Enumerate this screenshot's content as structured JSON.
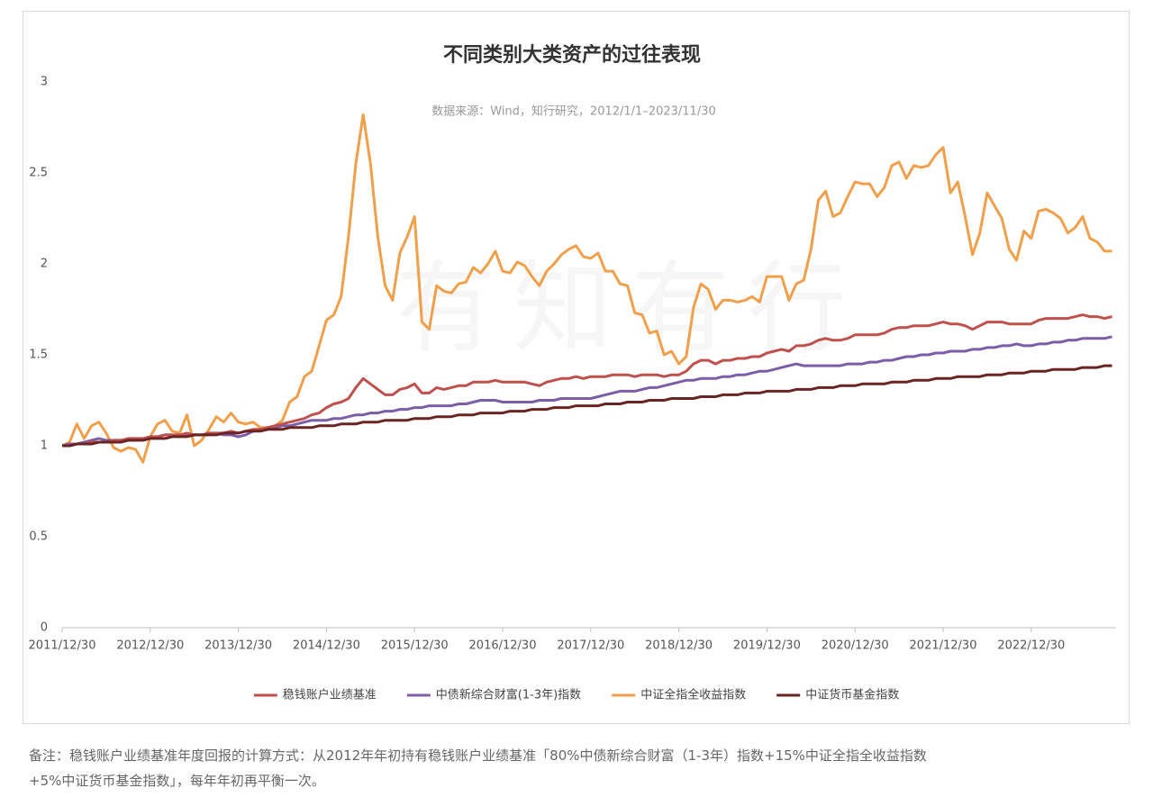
{
  "chart_data": {
    "type": "line",
    "title": "不同类别大类资产的过往表现",
    "subtitle": "数据来源：Wind，知行研究，2012/1/1–2023/11/30",
    "watermark": "有知有行",
    "categories": [
      "2011/12/30",
      null,
      null,
      null,
      null,
      null,
      null,
      null,
      null,
      null,
      null,
      null,
      "2012/12/30",
      null,
      null,
      null,
      null,
      null,
      null,
      null,
      null,
      null,
      null,
      null,
      "2013/12/30",
      null,
      null,
      null,
      null,
      null,
      null,
      null,
      null,
      null,
      null,
      null,
      "2014/12/30",
      null,
      null,
      null,
      null,
      null,
      null,
      null,
      null,
      null,
      null,
      null,
      "2015/12/30",
      null,
      null,
      null,
      null,
      null,
      null,
      null,
      null,
      null,
      null,
      null,
      "2016/12/30",
      null,
      null,
      null,
      null,
      null,
      null,
      null,
      null,
      null,
      null,
      null,
      "2017/12/30",
      null,
      null,
      null,
      null,
      null,
      null,
      null,
      null,
      null,
      null,
      null,
      "2018/12/30",
      null,
      null,
      null,
      null,
      null,
      null,
      null,
      null,
      null,
      null,
      null,
      "2019/12/30",
      null,
      null,
      null,
      null,
      null,
      null,
      null,
      null,
      null,
      null,
      null,
      "2020/12/30",
      null,
      null,
      null,
      null,
      null,
      null,
      null,
      null,
      null,
      null,
      null,
      "2021/12/30",
      null,
      null,
      null,
      null,
      null,
      null,
      null,
      null,
      null,
      null,
      null,
      "2022/12/30",
      null,
      null,
      null,
      null,
      null,
      null,
      null,
      null,
      null,
      null,
      null
    ],
    "series": [
      {
        "name": "稳钱账户业绩基准",
        "color": "#c0504d",
        "values": [
          1.0,
          1.0,
          1.01,
          1.01,
          1.02,
          1.02,
          1.02,
          1.03,
          1.03,
          1.04,
          1.04,
          1.04,
          1.05,
          1.05,
          1.06,
          1.06,
          1.06,
          1.07,
          1.06,
          1.06,
          1.07,
          1.07,
          1.07,
          1.08,
          1.07,
          1.08,
          1.09,
          1.09,
          1.1,
          1.11,
          1.12,
          1.13,
          1.14,
          1.15,
          1.17,
          1.18,
          1.21,
          1.23,
          1.24,
          1.26,
          1.32,
          1.37,
          1.34,
          1.31,
          1.28,
          1.28,
          1.31,
          1.32,
          1.34,
          1.29,
          1.29,
          1.32,
          1.31,
          1.32,
          1.33,
          1.33,
          1.35,
          1.35,
          1.35,
          1.36,
          1.35,
          1.35,
          1.35,
          1.35,
          1.34,
          1.33,
          1.35,
          1.36,
          1.37,
          1.37,
          1.38,
          1.37,
          1.38,
          1.38,
          1.38,
          1.39,
          1.39,
          1.39,
          1.38,
          1.39,
          1.39,
          1.39,
          1.38,
          1.39,
          1.39,
          1.41,
          1.45,
          1.47,
          1.47,
          1.45,
          1.47,
          1.47,
          1.48,
          1.48,
          1.49,
          1.49,
          1.51,
          1.52,
          1.53,
          1.52,
          1.55,
          1.55,
          1.56,
          1.58,
          1.59,
          1.58,
          1.58,
          1.59,
          1.61,
          1.61,
          1.61,
          1.61,
          1.62,
          1.64,
          1.65,
          1.65,
          1.66,
          1.66,
          1.66,
          1.67,
          1.68,
          1.67,
          1.67,
          1.66,
          1.64,
          1.66,
          1.68,
          1.68,
          1.68,
          1.67,
          1.67,
          1.67,
          1.67,
          1.69,
          1.7,
          1.7,
          1.7,
          1.7,
          1.71,
          1.72,
          1.71,
          1.71,
          1.7,
          1.71
        ]
      },
      {
        "name": "中债新综合财富(1-3年)指数",
        "color": "#7b5ea7",
        "values": [
          1.0,
          1.01,
          1.01,
          1.02,
          1.03,
          1.04,
          1.03,
          1.03,
          1.03,
          1.03,
          1.03,
          1.04,
          1.04,
          1.05,
          1.06,
          1.06,
          1.05,
          1.06,
          1.06,
          1.06,
          1.06,
          1.07,
          1.06,
          1.06,
          1.05,
          1.06,
          1.08,
          1.09,
          1.09,
          1.1,
          1.11,
          1.11,
          1.12,
          1.13,
          1.14,
          1.14,
          1.14,
          1.15,
          1.15,
          1.16,
          1.17,
          1.17,
          1.18,
          1.18,
          1.19,
          1.19,
          1.2,
          1.2,
          1.21,
          1.21,
          1.22,
          1.22,
          1.22,
          1.22,
          1.23,
          1.23,
          1.24,
          1.25,
          1.25,
          1.25,
          1.24,
          1.24,
          1.24,
          1.24,
          1.24,
          1.25,
          1.25,
          1.25,
          1.26,
          1.26,
          1.26,
          1.26,
          1.26,
          1.27,
          1.28,
          1.29,
          1.3,
          1.3,
          1.3,
          1.31,
          1.32,
          1.32,
          1.33,
          1.34,
          1.35,
          1.36,
          1.36,
          1.37,
          1.37,
          1.37,
          1.38,
          1.38,
          1.39,
          1.39,
          1.4,
          1.41,
          1.41,
          1.42,
          1.43,
          1.44,
          1.45,
          1.44,
          1.44,
          1.44,
          1.44,
          1.44,
          1.44,
          1.45,
          1.45,
          1.45,
          1.46,
          1.46,
          1.47,
          1.47,
          1.48,
          1.49,
          1.49,
          1.5,
          1.5,
          1.51,
          1.51,
          1.52,
          1.52,
          1.52,
          1.53,
          1.53,
          1.54,
          1.54,
          1.55,
          1.55,
          1.56,
          1.55,
          1.55,
          1.56,
          1.56,
          1.57,
          1.57,
          1.58,
          1.58,
          1.59,
          1.59,
          1.59,
          1.59,
          1.6
        ]
      },
      {
        "name": "中证全指全收益指数",
        "color": "#f0a04b",
        "values": [
          1.0,
          1.02,
          1.12,
          1.04,
          1.11,
          1.13,
          1.07,
          0.99,
          0.97,
          0.99,
          0.98,
          0.91,
          1.05,
          1.12,
          1.14,
          1.08,
          1.07,
          1.17,
          1.0,
          1.03,
          1.09,
          1.16,
          1.13,
          1.18,
          1.13,
          1.12,
          1.13,
          1.1,
          1.1,
          1.11,
          1.14,
          1.24,
          1.27,
          1.38,
          1.41,
          1.55,
          1.69,
          1.72,
          1.82,
          2.15,
          2.55,
          2.82,
          2.55,
          2.15,
          1.88,
          1.8,
          2.06,
          2.15,
          2.26,
          1.68,
          1.64,
          1.88,
          1.85,
          1.84,
          1.89,
          1.9,
          1.98,
          1.95,
          2.0,
          2.07,
          1.96,
          1.95,
          2.01,
          1.99,
          1.93,
          1.88,
          1.96,
          2.0,
          2.05,
          2.08,
          2.1,
          2.04,
          2.03,
          2.06,
          1.96,
          1.96,
          1.89,
          1.88,
          1.73,
          1.72,
          1.62,
          1.63,
          1.5,
          1.52,
          1.45,
          1.49,
          1.76,
          1.89,
          1.86,
          1.75,
          1.8,
          1.8,
          1.79,
          1.8,
          1.82,
          1.79,
          1.93,
          1.93,
          1.93,
          1.8,
          1.89,
          1.91,
          2.08,
          2.35,
          2.4,
          2.26,
          2.28,
          2.37,
          2.45,
          2.44,
          2.44,
          2.37,
          2.42,
          2.54,
          2.56,
          2.47,
          2.54,
          2.53,
          2.54,
          2.6,
          2.64,
          2.39,
          2.45,
          2.26,
          2.05,
          2.17,
          2.39,
          2.32,
          2.25,
          2.08,
          2.02,
          2.18,
          2.14,
          2.29,
          2.3,
          2.28,
          2.25,
          2.17,
          2.2,
          2.26,
          2.14,
          2.12,
          2.07,
          2.07
        ]
      },
      {
        "name": "中证货币基金指数",
        "color": "#6b2424",
        "values": [
          1.0,
          1.0,
          1.01,
          1.01,
          1.01,
          1.02,
          1.02,
          1.02,
          1.02,
          1.03,
          1.03,
          1.03,
          1.04,
          1.04,
          1.04,
          1.05,
          1.05,
          1.05,
          1.06,
          1.06,
          1.06,
          1.06,
          1.07,
          1.07,
          1.07,
          1.08,
          1.08,
          1.08,
          1.09,
          1.09,
          1.09,
          1.1,
          1.1,
          1.1,
          1.1,
          1.11,
          1.11,
          1.11,
          1.12,
          1.12,
          1.12,
          1.13,
          1.13,
          1.13,
          1.14,
          1.14,
          1.14,
          1.14,
          1.15,
          1.15,
          1.15,
          1.16,
          1.16,
          1.16,
          1.17,
          1.17,
          1.17,
          1.18,
          1.18,
          1.18,
          1.18,
          1.19,
          1.19,
          1.19,
          1.2,
          1.2,
          1.2,
          1.21,
          1.21,
          1.21,
          1.22,
          1.22,
          1.22,
          1.22,
          1.23,
          1.23,
          1.23,
          1.24,
          1.24,
          1.24,
          1.25,
          1.25,
          1.25,
          1.26,
          1.26,
          1.26,
          1.26,
          1.27,
          1.27,
          1.27,
          1.28,
          1.28,
          1.28,
          1.29,
          1.29,
          1.29,
          1.3,
          1.3,
          1.3,
          1.3,
          1.31,
          1.31,
          1.31,
          1.32,
          1.32,
          1.32,
          1.33,
          1.33,
          1.33,
          1.34,
          1.34,
          1.34,
          1.34,
          1.35,
          1.35,
          1.35,
          1.36,
          1.36,
          1.36,
          1.37,
          1.37,
          1.37,
          1.38,
          1.38,
          1.38,
          1.38,
          1.39,
          1.39,
          1.39,
          1.4,
          1.4,
          1.4,
          1.41,
          1.41,
          1.41,
          1.42,
          1.42,
          1.42,
          1.42,
          1.43,
          1.43,
          1.43,
          1.44,
          1.44
        ]
      }
    ],
    "ylim": [
      0,
      3
    ],
    "yticks": [
      0,
      0.5,
      1,
      1.5,
      2,
      2.5,
      3
    ],
    "grid": false,
    "legend": "bottom"
  },
  "note": [
    "备注：稳钱账户业绩基准年度回报的计算方式：从2012年年初持有稳钱账户业绩基准「80%中债新综合财富（1-3年）指数+15%中证全指全收益指数",
    "+5%中证货币基金指数」，每年年初再平衡一次。"
  ]
}
